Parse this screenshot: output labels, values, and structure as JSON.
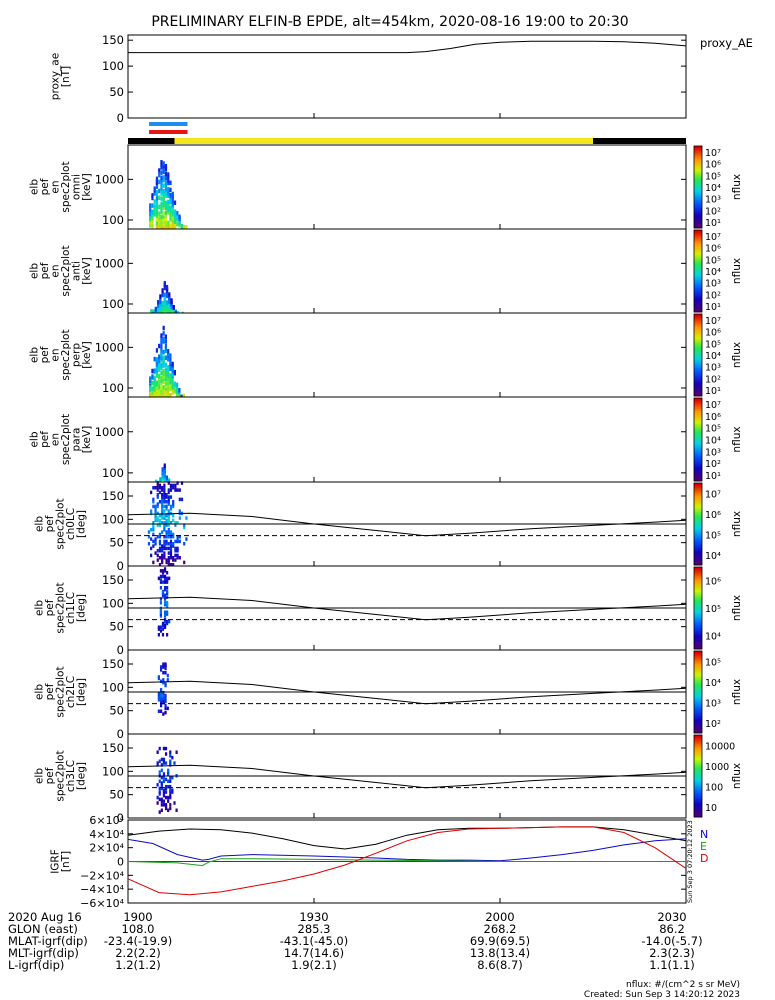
{
  "title": "PRELIMINARY ELFIN-B EPDE, alt=454km, 2020-08-16 19:00 to 20:30",
  "colors": {
    "trace": "#000000",
    "ne_blue": "#0a0ac8",
    "ne_green": "#1ca01c",
    "ne_red": "#dc0000",
    "bar_yellow": "#f5e61e",
    "bar_black": "#000000",
    "flag_blue": "#1e8cf0",
    "flag_red": "#e61414"
  },
  "chart_data": [
    {
      "type": "line",
      "panel": "proxy_ae",
      "ylabel": [
        "proxy_ae",
        "[nT]"
      ],
      "legend": "proxy_AE",
      "ylim": [
        0,
        160
      ],
      "yticks": [
        "0",
        "50",
        "100",
        "150"
      ],
      "ytick_values": [
        0,
        50,
        100,
        150
      ],
      "x_minutes": [
        0,
        25,
        45,
        48,
        52,
        56,
        60,
        65,
        70,
        75,
        80,
        85,
        90
      ],
      "values": [
        126,
        126,
        126,
        128,
        134,
        142,
        146,
        148,
        148,
        148,
        147,
        144,
        139
      ]
    },
    {
      "type": "bar",
      "panel": "flags",
      "segments": [
        {
          "start": 0,
          "end": 7.5,
          "color": "bar_black"
        },
        {
          "start": 7.5,
          "end": 75,
          "color": "bar_yellow"
        },
        {
          "start": 75,
          "end": 90,
          "color": "bar_black"
        }
      ],
      "markers": [
        {
          "start": 3.4,
          "end": 9.6,
          "color": "flag_blue",
          "row": 0
        },
        {
          "start": 3.4,
          "end": 9.6,
          "color": "flag_red",
          "row": 1
        }
      ]
    },
    {
      "type": "heatmap",
      "panel": "omni",
      "ylabel": [
        "elb",
        "pef",
        "en",
        "spec2plot",
        "omni",
        "[keV]"
      ],
      "log_y": true,
      "ylim": [
        60,
        7000
      ],
      "yticks": [
        "100",
        "1000"
      ],
      "ytick_values": [
        100,
        1000
      ],
      "colorbar": {
        "label": "nflux",
        "log": true,
        "min_exp": 1,
        "max_exp": 7,
        "ticks": [
          "10¹",
          "10²",
          "10³",
          "10⁴",
          "10⁵",
          "10⁶",
          "10⁷"
        ]
      },
      "activity": {
        "start": 3.4,
        "end": 9.6,
        "peak": 5.5,
        "top": 4000,
        "strength": 1.0
      }
    },
    {
      "type": "heatmap",
      "panel": "anti",
      "ylabel": [
        "elb",
        "pef",
        "en",
        "spec2plot",
        "anti",
        "[keV]"
      ],
      "log_y": true,
      "ylim": [
        60,
        7000
      ],
      "yticks": [
        "100",
        "1000"
      ],
      "ytick_values": [
        100,
        1000
      ],
      "colorbar": {
        "label": "nflux",
        "log": true,
        "min_exp": 1,
        "max_exp": 7,
        "ticks": [
          "10¹",
          "10²",
          "10³",
          "10⁴",
          "10⁵",
          "10⁶",
          "10⁷"
        ]
      },
      "activity": {
        "start": 3.6,
        "end": 9.0,
        "peak": 5.8,
        "top": 350,
        "strength": 0.45
      }
    },
    {
      "type": "heatmap",
      "panel": "perp",
      "ylabel": [
        "elb",
        "pef",
        "en",
        "spec2plot",
        "perp",
        "[keV]"
      ],
      "log_y": true,
      "ylim": [
        60,
        7000
      ],
      "yticks": [
        "100",
        "1000"
      ],
      "ytick_values": [
        100,
        1000
      ],
      "colorbar": {
        "label": "nflux",
        "log": true,
        "min_exp": 1,
        "max_exp": 7,
        "ticks": [
          "10¹",
          "10²",
          "10³",
          "10⁴",
          "10⁵",
          "10⁶",
          "10⁷"
        ]
      },
      "activity": {
        "start": 3.4,
        "end": 9.2,
        "peak": 5.5,
        "top": 3500,
        "strength": 1.0
      }
    },
    {
      "type": "heatmap",
      "panel": "para",
      "ylabel": [
        "elb",
        "pef",
        "en",
        "spec2plot",
        "para",
        "[keV]"
      ],
      "log_y": true,
      "ylim": [
        60,
        7000
      ],
      "yticks": [
        "100",
        "1000"
      ],
      "ytick_values": [
        100,
        1000
      ],
      "colorbar": {
        "label": "nflux",
        "log": true,
        "min_exp": 1,
        "max_exp": 7,
        "ticks": [
          "10¹",
          "10²",
          "10³",
          "10⁴",
          "10⁵",
          "10⁶",
          "10⁷"
        ]
      },
      "activity": {
        "start": 4.0,
        "end": 6.8,
        "peak": 5.6,
        "top": 200,
        "strength": 0.3
      }
    },
    {
      "type": "heatmap",
      "panel": "ch0LC",
      "ylabel": [
        "elb",
        "pef",
        "spec2plot",
        "ch0LC",
        "[deg]"
      ],
      "ylim": [
        0,
        180
      ],
      "yticks": [
        "0",
        "50",
        "100",
        "150"
      ],
      "ytick_values": [
        0,
        50,
        100,
        150
      ],
      "colorbar": {
        "label": "nflux",
        "log": true,
        "min_exp": 3.3,
        "max_exp": 7,
        "ticks": [
          "10⁴",
          "10⁵",
          "10⁶",
          "10⁷"
        ]
      },
      "activity": {
        "start": 3.2,
        "end": 9.6,
        "peak": 5.8,
        "ymin": 0,
        "ymax": 180,
        "strength": 0.7
      },
      "curve_solid": [
        [
          0,
          110
        ],
        [
          10,
          113
        ],
        [
          20,
          106
        ],
        [
          30,
          90
        ],
        [
          40,
          76
        ],
        [
          48,
          65
        ],
        [
          55,
          70
        ],
        [
          65,
          80
        ],
        [
          75,
          87
        ],
        [
          85,
          94
        ],
        [
          90,
          98
        ]
      ],
      "ref_line": 90,
      "curve_dashed": 65
    },
    {
      "type": "heatmap",
      "panel": "ch1LC",
      "ylabel": [
        "elb",
        "pef",
        "spec2plot",
        "ch1LC",
        "[deg]"
      ],
      "ylim": [
        0,
        180
      ],
      "yticks": [
        "0",
        "50",
        "100",
        "150"
      ],
      "ytick_values": [
        0,
        50,
        100,
        150
      ],
      "colorbar": {
        "label": "nflux",
        "log": true,
        "min_exp": 3.3,
        "max_exp": 6.8,
        "ticks": [
          "10⁴",
          "10⁵",
          "10⁶"
        ]
      },
      "activity": {
        "start": 4.8,
        "end": 6.8,
        "peak": 5.6,
        "ymin": 30,
        "ymax": 175,
        "strength": 0.5
      },
      "curve_solid": [
        [
          0,
          110
        ],
        [
          10,
          113
        ],
        [
          20,
          106
        ],
        [
          30,
          90
        ],
        [
          40,
          76
        ],
        [
          48,
          65
        ],
        [
          55,
          70
        ],
        [
          65,
          80
        ],
        [
          75,
          87
        ],
        [
          85,
          94
        ],
        [
          90,
          98
        ]
      ],
      "ref_line": 90,
      "curve_dashed": 65
    },
    {
      "type": "heatmap",
      "panel": "ch2LC",
      "ylabel": [
        "elb",
        "pef",
        "spec2plot",
        "ch2LC",
        "[deg]"
      ],
      "ylim": [
        0,
        180
      ],
      "yticks": [
        "0",
        "50",
        "100",
        "150"
      ],
      "ytick_values": [
        0,
        50,
        100,
        150
      ],
      "colorbar": {
        "label": "nflux",
        "log": true,
        "min_exp": 1.8,
        "max_exp": 6.0,
        "ticks": [
          "10²",
          "10³",
          "10⁴",
          "10⁵"
        ]
      },
      "activity": {
        "start": 4.8,
        "end": 6.6,
        "peak": 5.5,
        "ymin": 40,
        "ymax": 150,
        "strength": 0.45
      },
      "curve_solid": [
        [
          0,
          110
        ],
        [
          10,
          113
        ],
        [
          20,
          106
        ],
        [
          30,
          90
        ],
        [
          40,
          76
        ],
        [
          48,
          65
        ],
        [
          55,
          70
        ],
        [
          65,
          80
        ],
        [
          75,
          87
        ],
        [
          85,
          94
        ],
        [
          90,
          98
        ]
      ],
      "ref_line": 90,
      "curve_dashed": 65
    },
    {
      "type": "heatmap",
      "panel": "ch3LC",
      "ylabel": [
        "elb",
        "pef",
        "spec2plot",
        "ch3LC",
        "[deg]"
      ],
      "ylim": [
        0,
        180
      ],
      "yticks": [
        "0",
        "50",
        "100",
        "150"
      ],
      "ytick_values": [
        0,
        50,
        100,
        150
      ],
      "colorbar": {
        "label": "nflux",
        "log": true,
        "min_exp": 1,
        "max_exp": 4.2,
        "ticks": [
          "10",
          "100",
          "1000",
          "10000"
        ]
      },
      "activity": {
        "start": 4.6,
        "end": 8.0,
        "peak": 5.5,
        "ymin": 10,
        "ymax": 150,
        "strength": 0.4
      },
      "curve_solid": [
        [
          0,
          110
        ],
        [
          10,
          113
        ],
        [
          20,
          106
        ],
        [
          30,
          90
        ],
        [
          40,
          76
        ],
        [
          48,
          65
        ],
        [
          55,
          70
        ],
        [
          65,
          80
        ],
        [
          75,
          87
        ],
        [
          85,
          94
        ],
        [
          90,
          98
        ]
      ],
      "ref_line": 90,
      "curve_dashed": 65
    },
    {
      "type": "line",
      "panel": "igrf",
      "ylabel": [
        "IGRF",
        "[nT]"
      ],
      "ylim": [
        -60000,
        60000
      ],
      "yticks": [
        "6×10⁴",
        "4×10⁴",
        "2×10⁴",
        "0",
        "−2×10⁴",
        "−4×10⁴",
        "−6×10⁴"
      ],
      "ytick_values": [
        60000,
        40000,
        20000,
        0,
        -20000,
        -40000,
        -60000
      ],
      "legend": [
        "N",
        "E",
        "D"
      ],
      "side_text": "Sun Sep  3 07:20:12 2023",
      "series": [
        {
          "name": "black",
          "color": "trace",
          "x_minutes": [
            0,
            5,
            10,
            15,
            20,
            25,
            30,
            35,
            40,
            45,
            50,
            55,
            60,
            65,
            70,
            75,
            80,
            85,
            90
          ],
          "values": [
            38000,
            44000,
            47000,
            46000,
            41000,
            33000,
            23000,
            18000,
            25000,
            38000,
            46000,
            48000,
            48000,
            49000,
            50000,
            50000,
            46000,
            38000,
            30000
          ]
        },
        {
          "name": "N",
          "color": "ne_blue",
          "x_minutes": [
            0,
            4,
            8,
            10,
            12,
            13,
            15,
            20,
            30,
            40,
            45,
            50,
            55,
            60,
            65,
            70,
            75,
            80,
            85,
            90
          ],
          "values": [
            32000,
            26000,
            10000,
            6000,
            2000,
            3000,
            8000,
            10000,
            8000,
            5000,
            3000,
            2000,
            2000,
            1000,
            5000,
            10000,
            16000,
            24000,
            30000,
            33000
          ]
        },
        {
          "name": "E",
          "color": "ne_green",
          "x_minutes": [
            0,
            8,
            12,
            13,
            15,
            20,
            30,
            40,
            50,
            60,
            70,
            80,
            90
          ],
          "values": [
            0,
            -2000,
            -6000,
            -1000,
            4000,
            4000,
            3000,
            2000,
            1000,
            0,
            0,
            0,
            0
          ]
        },
        {
          "name": "D",
          "color": "ne_red",
          "x_minutes": [
            0,
            5,
            10,
            15,
            20,
            25,
            30,
            35,
            40,
            45,
            50,
            55,
            60,
            65,
            70,
            75,
            80,
            85,
            90
          ],
          "values": [
            -25000,
            -45000,
            -48000,
            -44000,
            -36000,
            -28000,
            -18000,
            -5000,
            12000,
            30000,
            42000,
            47000,
            48000,
            49000,
            50000,
            50000,
            42000,
            20000,
            -10000
          ]
        }
      ]
    }
  ],
  "x_axis": {
    "range_minutes": [
      0,
      90
    ],
    "ticks": [
      {
        "minutes": 0,
        "label": "1900"
      },
      {
        "minutes": 30,
        "label": "1930"
      },
      {
        "minutes": 60,
        "label": "2000"
      },
      {
        "minutes": 90,
        "label": "2030"
      }
    ]
  },
  "ephemeris": {
    "rows": [
      {
        "label": "2020 Aug 16",
        "values": [
          "1900",
          "1930",
          "2000",
          "2030"
        ]
      },
      {
        "label": "GLON (east)",
        "values": [
          "108.0",
          "285.3",
          "268.2",
          "86.2"
        ]
      },
      {
        "label": "MLAT-igrf(dip)",
        "values": [
          "-23.4(-19.9)",
          "-43.1(-45.0)",
          "69.9(69.5)",
          "-14.0(-5.7)"
        ]
      },
      {
        "label": "MLT-igrf(dip)",
        "values": [
          "2.2(2.2)",
          "14.7(14.6)",
          "13.8(13.4)",
          "2.3(2.3)"
        ]
      },
      {
        "label": "L-igrf(dip)",
        "values": [
          "1.2(1.2)",
          "1.9(2.1)",
          "8.6(8.7)",
          "1.1(1.1)"
        ]
      }
    ]
  },
  "footer": {
    "units": "nflux: #/(cm^2 s sr MeV)",
    "created": "Created: Sun Sep  3 14:20:12 2023"
  }
}
